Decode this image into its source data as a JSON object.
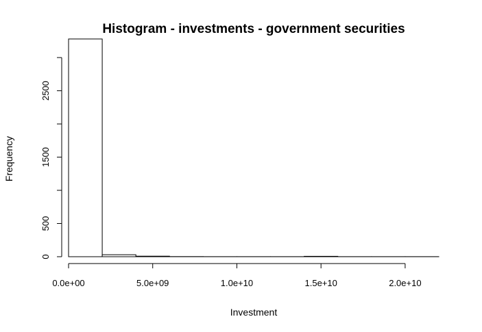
{
  "chart_data": {
    "type": "bar",
    "title": "Histogram - investments - government securities",
    "xlabel": "Investment",
    "ylabel": "Frequency",
    "xlim": [
      0,
      22000000000
    ],
    "ylim": [
      0,
      3300
    ],
    "bin_edges": [
      0,
      2000000000,
      4000000000,
      6000000000,
      8000000000,
      10000000000,
      12000000000,
      14000000000,
      16000000000,
      18000000000,
      20000000000,
      22000000000
    ],
    "values": [
      3280,
      30,
      8,
      2,
      1,
      1,
      1,
      6,
      1,
      1,
      1
    ],
    "x_ticks": [
      0,
      5000000000,
      10000000000,
      15000000000,
      20000000000
    ],
    "x_tick_labels": [
      "0.0e+00",
      "5.0e+09",
      "1.0e+10",
      "1.5e+10",
      "2.0e+10"
    ],
    "y_ticks": [
      0,
      500,
      1000,
      1500,
      2000,
      2500,
      3000
    ],
    "y_tick_labels": [
      "0",
      "500",
      "",
      "1500",
      "",
      "2500",
      ""
    ],
    "grid": false,
    "bar_fill": "#ffffff",
    "bar_stroke": "#000000"
  }
}
